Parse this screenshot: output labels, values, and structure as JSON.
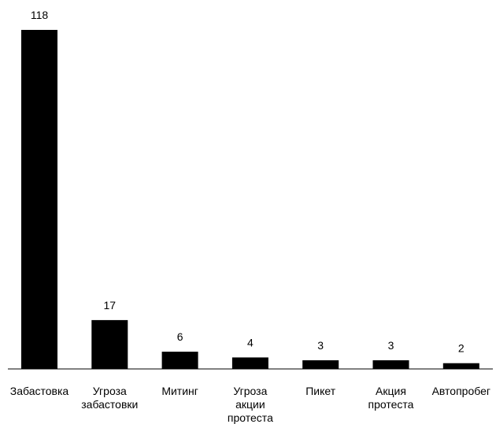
{
  "chart_data": {
    "type": "bar",
    "categories": [
      [
        "Забастовка"
      ],
      [
        "Угроза",
        "забастовки"
      ],
      [
        "Митинг"
      ],
      [
        "Угроза",
        "акции",
        "протеста"
      ],
      [
        "Пикет"
      ],
      [
        "Акция",
        "протеста"
      ],
      [
        "Автопробег"
      ]
    ],
    "values": [
      118,
      17,
      6,
      4,
      3,
      3,
      2
    ],
    "data_labels": [
      "118",
      "17",
      "6",
      "4",
      "3",
      "3",
      "2"
    ],
    "ylim": [
      0,
      118
    ],
    "grid": false,
    "legend": "none",
    "bar_color": "#000000"
  }
}
